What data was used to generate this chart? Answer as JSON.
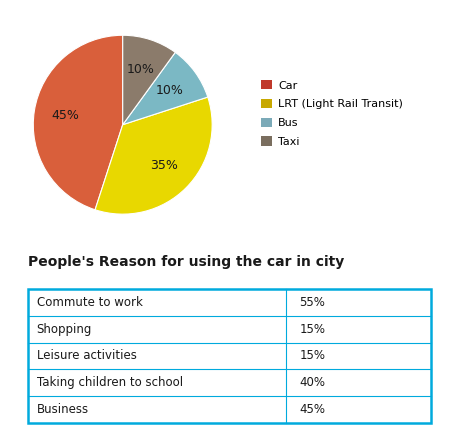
{
  "pie_labels": [
    "Car",
    "LRT (Light Rail Transit)",
    "Bus",
    "Taxi"
  ],
  "pie_values": [
    45,
    35,
    10,
    10
  ],
  "pie_colors": [
    "#D95F3B",
    "#E8D800",
    "#7BB8C4",
    "#8B7B6B"
  ],
  "legend_labels": [
    "Car",
    "LRT (Light Rail Transit)",
    "Bus",
    "Taxi"
  ],
  "legend_colors": [
    "#C0392B",
    "#C8A800",
    "#7BAAB8",
    "#7A6E5F"
  ],
  "table_title": "People's Reason for using the car in city",
  "table_rows": [
    [
      "Commute to work",
      "55%"
    ],
    [
      "Shopping",
      "15%"
    ],
    [
      "Leisure activities",
      "15%"
    ],
    [
      "Taking children to school",
      "40%"
    ],
    [
      "Business",
      "45%"
    ]
  ],
  "table_border_color": "#00AADD",
  "background_color": "#FFFFFF",
  "title_fontsize": 10,
  "table_fontsize": 8.5,
  "pct_fontsize": 9
}
